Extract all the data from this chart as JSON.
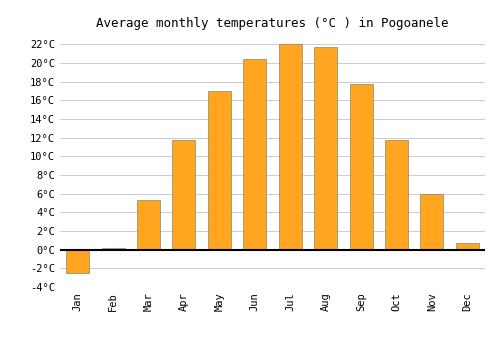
{
  "title": "Average monthly temperatures (°C ) in Pogoanele",
  "months": [
    "Jan",
    "Feb",
    "Mar",
    "Apr",
    "May",
    "Jun",
    "Jul",
    "Aug",
    "Sep",
    "Oct",
    "Nov",
    "Dec"
  ],
  "values": [
    -2.5,
    0.2,
    5.3,
    11.8,
    17.0,
    20.4,
    22.0,
    21.7,
    17.8,
    11.8,
    6.0,
    0.7
  ],
  "bar_color_positive": "#FFA520",
  "bar_color_negative": "#FFA520",
  "bar_edge_color": "#888866",
  "ylim": [
    -4,
    23
  ],
  "yticks": [
    -4,
    -2,
    0,
    2,
    4,
    6,
    8,
    10,
    12,
    14,
    16,
    18,
    20,
    22
  ],
  "ytick_labels": [
    "-4°C",
    "-2°C",
    "0°C",
    "2°C",
    "4°C",
    "6°C",
    "8°C",
    "10°C",
    "12°C",
    "14°C",
    "16°C",
    "18°C",
    "20°C",
    "22°C"
  ],
  "background_color": "#ffffff",
  "grid_color": "#cccccc",
  "title_fontsize": 9,
  "tick_fontsize": 7.5,
  "font_family": "monospace",
  "bar_width": 0.65
}
